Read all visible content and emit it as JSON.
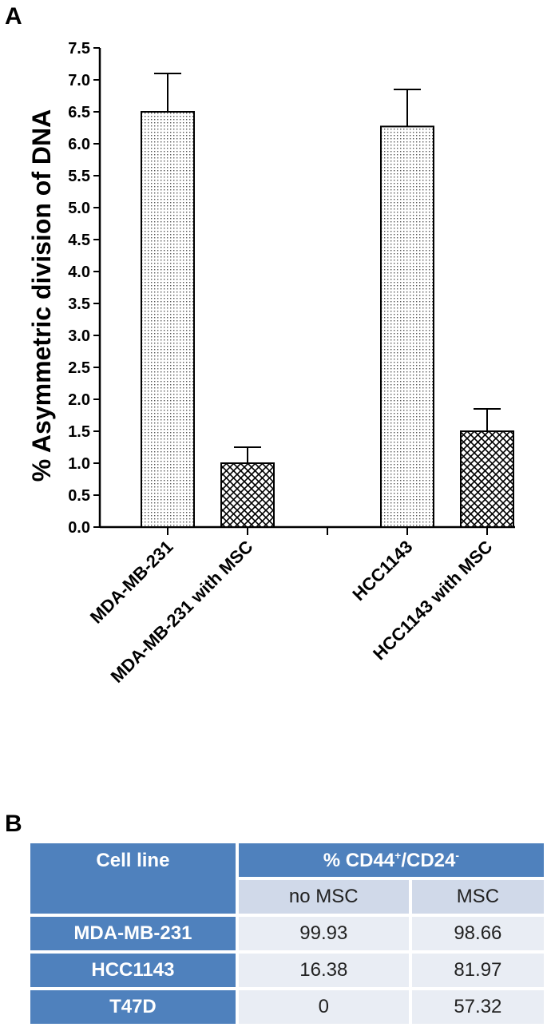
{
  "panels": {
    "a": "A",
    "b": "B"
  },
  "chart_data": {
    "type": "bar",
    "categories": [
      "MDA-MB-231",
      "MDA-MB-231 with MSC",
      "HCC1143",
      "HCC1143 with MSC"
    ],
    "values": [
      6.5,
      1.0,
      6.27,
      1.5
    ],
    "error_upper": [
      7.1,
      1.25,
      6.85,
      1.85
    ],
    "ylabel": "% Asymmetric division of DNA",
    "ylim": [
      0,
      7.5
    ],
    "yticks": [
      "0.0",
      "0.5",
      "1.0",
      "1.5",
      "2.0",
      "2.5",
      "3.0",
      "3.5",
      "4.0",
      "4.5",
      "5.0",
      "5.5",
      "6.0",
      "6.5",
      "7.0",
      "7.5"
    ],
    "patterns": [
      "dots",
      "crosshatch",
      "dots",
      "crosshatch"
    ],
    "grid": false
  },
  "table": {
    "col_header": "Cell line",
    "group_header_prefix": "% CD44",
    "group_header_sup1": "+",
    "group_header_mid": "/CD24",
    "group_header_sup2": "-",
    "sub_headers": [
      "no MSC",
      "MSC"
    ],
    "rows": [
      {
        "name": "MDA-MB-231",
        "no_msc": "99.93",
        "msc": "98.66"
      },
      {
        "name": "HCC1143",
        "no_msc": "16.38",
        "msc": "81.97"
      },
      {
        "name": "T47D",
        "no_msc": "0",
        "msc": "57.32"
      }
    ]
  },
  "colors": {
    "table_header": "#4f81bd",
    "table_subheader": "#d0d9e9",
    "table_cell": "#e9edf4"
  }
}
